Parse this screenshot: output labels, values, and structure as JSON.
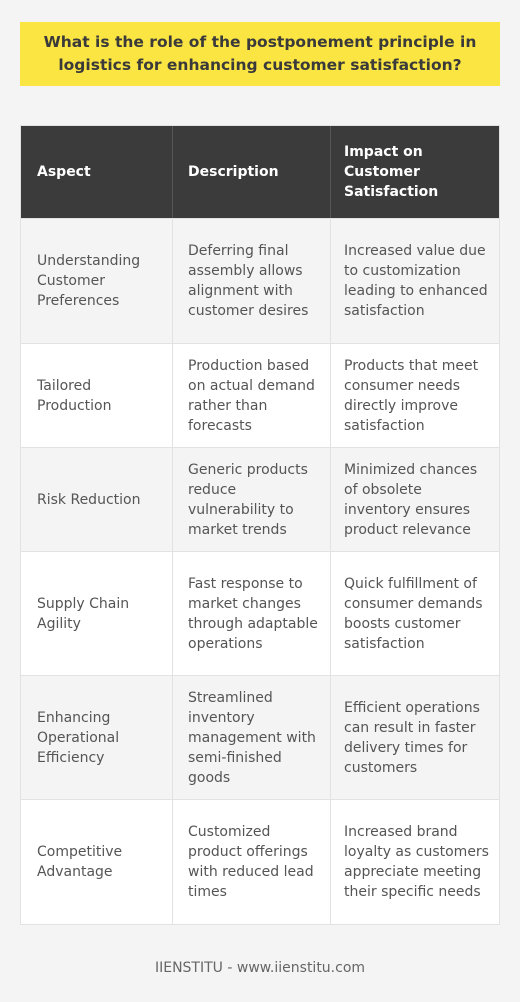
{
  "title": "What is the role of the postponement principle in logistics for enhancing customer satisfaction?",
  "table": {
    "headers": [
      "Aspect",
      "Description",
      "Impact on Customer Satisfaction"
    ],
    "rows": [
      [
        "Understanding Customer Preferences",
        "Deferring final assembly allows alignment with customer desires",
        "Increased value due to customization leading to enhanced satisfaction"
      ],
      [
        "Tailored Production",
        "Production based on actual demand rather than forecasts",
        "Products that meet consumer needs directly improve satisfaction"
      ],
      [
        "Risk Reduction",
        "Generic products reduce vulnerability to market trends",
        "Minimized chances of obsolete inventory ensures product relevance"
      ],
      [
        "Supply Chain Agility",
        "Fast response to market changes through adaptable operations",
        "Quick fulfillment of consumer demands boosts customer satisfaction"
      ],
      [
        "Enhancing Operational Efficiency",
        "Streamlined inventory management with semi-finished goods",
        "Efficient operations can result in faster delivery times for customers"
      ],
      [
        "Competitive Advantage",
        "Customized product offerings with reduced lead times",
        "Increased brand loyalty as customers appreciate meeting their specific needs"
      ]
    ]
  },
  "footer": "IIENSTITU - www.iienstitu.com"
}
